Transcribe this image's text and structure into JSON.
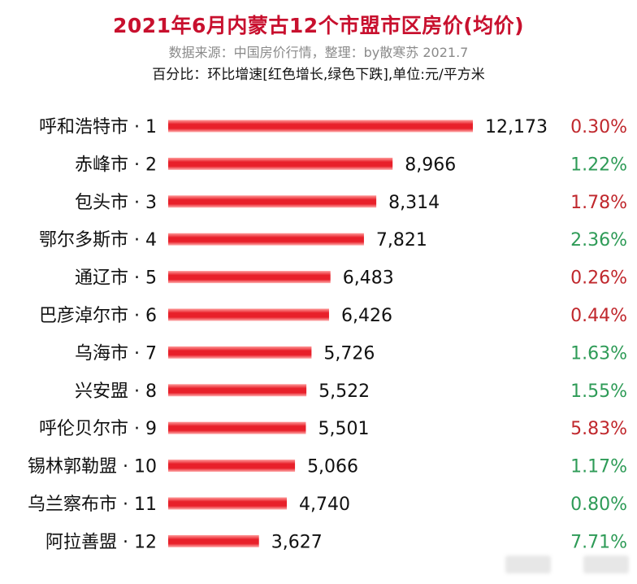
{
  "header": {
    "title": "2021年6月内蒙古12个市盟市区房价(均价)",
    "subtitle": "数据来源：中国房价行情，整理：by散寒苏 2021.7",
    "note": "百分比：环比增速[红色增长,绿色下跌],单位:元/平方米"
  },
  "colors": {
    "title": "#c8102e",
    "bar": "#e8202a",
    "bar_light": "#ff8a8a",
    "increase": "#c0282d",
    "decrease": "#2e9b57"
  },
  "chart_data": {
    "type": "bar",
    "orientation": "horizontal",
    "categories": [
      "呼和浩特市 · 1",
      "赤峰市 · 2",
      "包头市 · 3",
      "鄂尔多斯市 · 4",
      "通辽市 · 5",
      "巴彦淖尔市 · 6",
      "乌海市 · 7",
      "兴安盟 · 8",
      "呼伦贝尔市 · 9",
      "锡林郭勒盟 · 10",
      "乌兰察布市 · 11",
      "阿拉善盟 · 12"
    ],
    "values": [
      12173,
      8966,
      8314,
      7821,
      6483,
      6426,
      5726,
      5522,
      5501,
      5066,
      4740,
      3627
    ],
    "value_labels": [
      "12,173",
      "8,966",
      "8,314",
      "7,821",
      "6,483",
      "6,426",
      "5,726",
      "5,522",
      "5,501",
      "5,066",
      "4,740",
      "3,627"
    ],
    "mom_change": [
      "0.30%",
      "1.22%",
      "1.78%",
      "2.36%",
      "0.26%",
      "0.44%",
      "1.63%",
      "1.55%",
      "5.83%",
      "1.17%",
      "0.80%",
      "7.71%"
    ],
    "mom_direction": [
      "up",
      "down",
      "up",
      "down",
      "up",
      "up",
      "down",
      "down",
      "up",
      "down",
      "down",
      "down"
    ],
    "xlim": [
      0,
      12173
    ],
    "grid": false,
    "legend": "none"
  }
}
